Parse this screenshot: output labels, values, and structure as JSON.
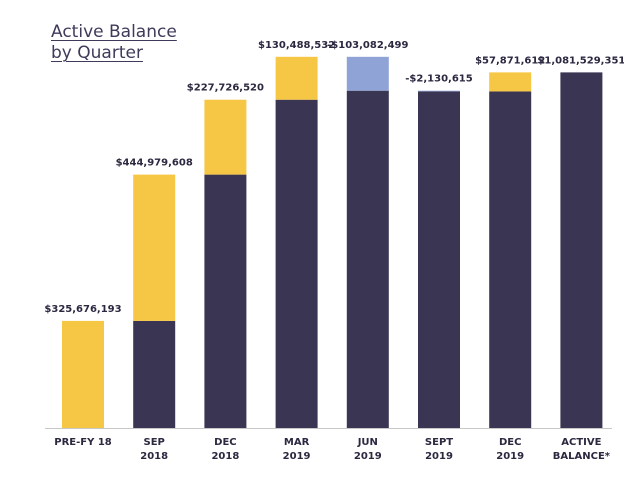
{
  "chart_data": {
    "type": "waterfall",
    "title": "Active Balance\nby Quarter",
    "categories": [
      "PRE-FY 18",
      "SEP\n2018",
      "DEC\n2018",
      "MAR\n2019",
      "JUN\n2019",
      "SEPT\n2019",
      "DEC\n2019",
      "ACTIVE\nBALANCE*"
    ],
    "values": [
      325676193,
      444979608,
      227726520,
      130488532,
      -103082499,
      -2130615,
      57871612,
      1081529351
    ],
    "value_labels": [
      "$325,676,193",
      "$444,979,608",
      "$227,726,520",
      "$130,488,532",
      "-$103,082,499",
      "-$2,130,615",
      "$57,871,612",
      "$1,081,529,351"
    ],
    "total_index": 7,
    "increase_color": "#f6c744",
    "decrease_color": "#8fa3d6",
    "base_color": "#393552",
    "ylim": [
      0,
      1180000000
    ]
  }
}
